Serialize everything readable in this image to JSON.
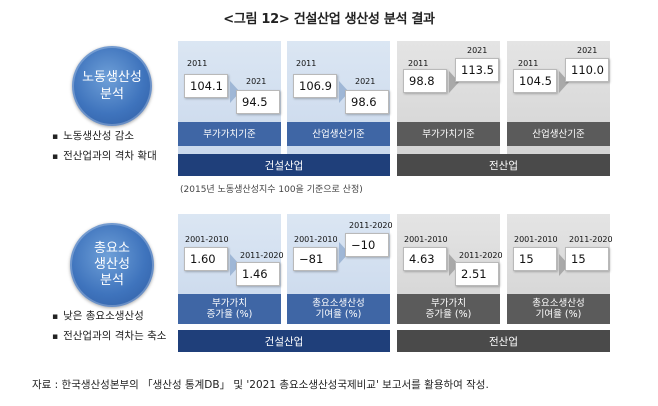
{
  "title": "<그림 12> 건설산업 생산성 분석 결과",
  "section1": {
    "circle_lines": [
      "노동생산성",
      "분석"
    ],
    "bullets": [
      "노동생산성 감소",
      "전산업과의 격차 확대"
    ],
    "panels": [
      {
        "label_a": "2011",
        "value_a": "104.1",
        "label_b": "2021",
        "value_b": "94.5",
        "caption": "부가가치기준"
      },
      {
        "label_a": "2011",
        "value_a": "106.9",
        "label_b": "2021",
        "value_b": "98.6",
        "caption": "산업생산기준"
      },
      {
        "label_a": "2011",
        "value_a": "98.8",
        "label_b": "2021",
        "value_b": "113.5",
        "caption": "부가가치기준"
      },
      {
        "label_a": "2011",
        "value_a": "104.5",
        "label_b": "2021",
        "value_b": "110.0",
        "caption": "산업생산기준"
      }
    ],
    "band_left": "건설산업",
    "band_right": "전산업",
    "note": "(2015년 노동생산성지수 100을 기준으로 산정)"
  },
  "section2": {
    "circle_lines": [
      "총요소",
      "생산성",
      "분석"
    ],
    "bullets": [
      "낮은 총요소생산성",
      "전산업과의 격차는 축소"
    ],
    "panels": [
      {
        "label_a": "2001-2010",
        "value_a": "1.60",
        "label_b": "2011-2020",
        "value_b": "1.46",
        "caption1": "부가가치",
        "caption2": "증가율 (%)"
      },
      {
        "label_a": "2001-2010",
        "value_a": "−81",
        "label_b": "2011-2020",
        "value_b": "−10",
        "caption1": "총요소생산성",
        "caption2": "기여율 (%)"
      },
      {
        "label_a": "2001-2010",
        "value_a": "4.63",
        "label_b": "2011-2020",
        "value_b": "2.51",
        "caption1": "부가가치",
        "caption2": "증가율 (%)"
      },
      {
        "label_a": "2001-2010",
        "value_a": "15",
        "label_b": "2011-2020",
        "value_b": "15",
        "caption1": "총요소생산성",
        "caption2": "기여율 (%)"
      }
    ],
    "band_left": "건설산업",
    "band_right": "전산업"
  },
  "source": "자료 : 한국생산성본부의 「생산성 통계DB」 및 '2021 총요소생산성국제비교' 보고서를 활용하여 작성.",
  "colors": {
    "blue_band": "#1f3f7a",
    "blue_label": "#3f66a5",
    "gray_band": "#4a4a4a",
    "gray_label": "#5b5b5b",
    "circle": "#3f74bd"
  }
}
